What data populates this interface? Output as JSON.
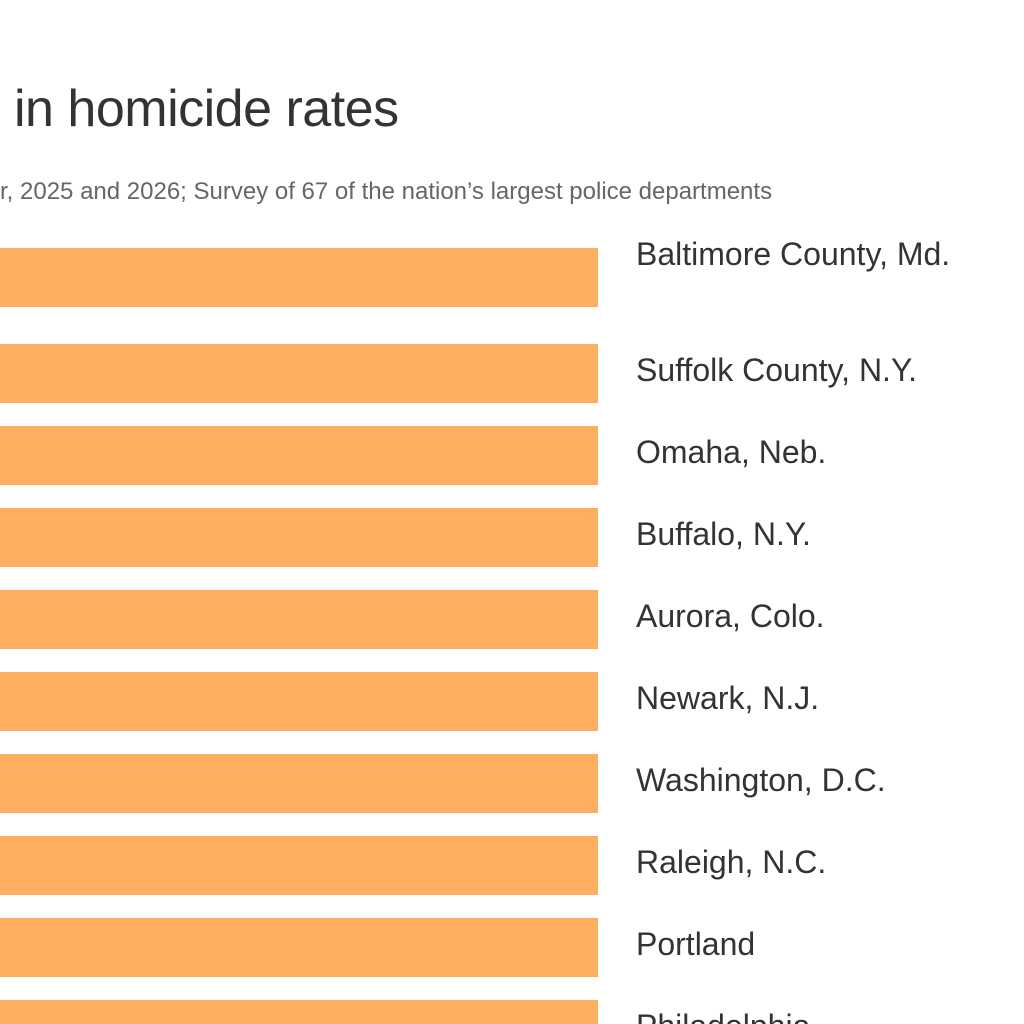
{
  "colors": {
    "bar": "#ffad5f",
    "text": "#333333",
    "subtitle": "#666666"
  },
  "chart_data": {
    "type": "bar",
    "orientation": "horizontal",
    "title": "in homicide rates",
    "subtitle": "r, 2025 and 2026; Survey of 67 of the nation’s largest police departments",
    "categories": [
      "Baltimore County, Md.",
      "Suffolk County, N.Y.",
      "Omaha, Neb.",
      "Buffalo, N.Y.",
      "Aurora, Colo.",
      "Newark, N.J.",
      "Washington, D.C.",
      "Raleigh, N.C.",
      "Portland",
      "Philadelphia"
    ],
    "values": [
      -100,
      -100,
      -100,
      -100,
      -100,
      -100,
      -100,
      -100,
      -100,
      -100
    ],
    "value_unit": "percent change",
    "legend": "none",
    "grid": false
  }
}
